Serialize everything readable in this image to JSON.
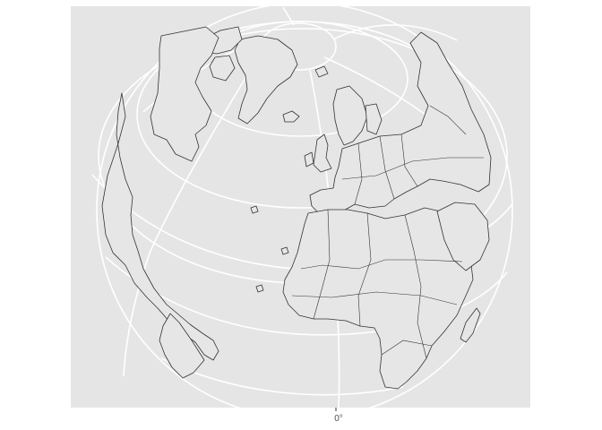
{
  "map": {
    "projection": "orthographic",
    "panel_background": "#e5e5e5",
    "land_fill": "#e6e6e6",
    "border_color": "#333333",
    "graticule_color": "#ffffff",
    "x_axis": {
      "tick_label": "0°"
    }
  }
}
